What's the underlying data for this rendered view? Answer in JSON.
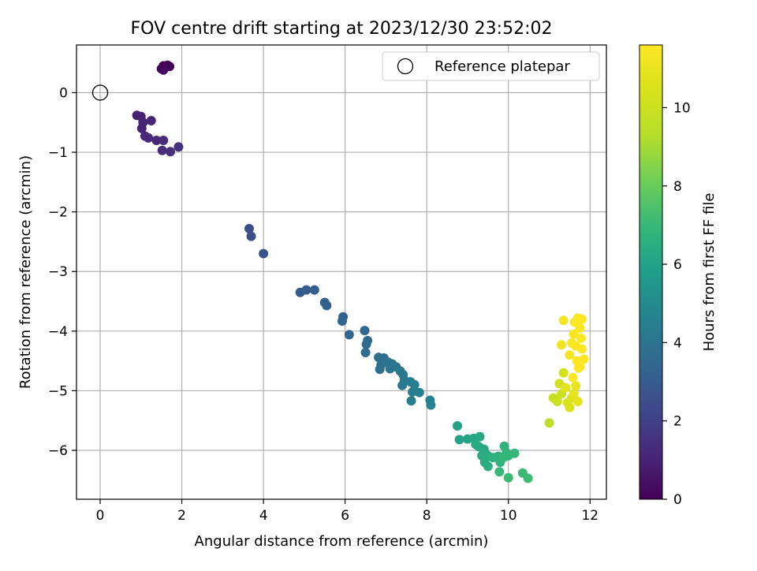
{
  "chart_data": {
    "type": "scatter",
    "title": "FOV centre drift starting at 2023/12/30 23:52:02",
    "xlabel": "Angular distance from reference (arcmin)",
    "ylabel": "Rotation from reference (arcmin)",
    "colorbar_label": "Hours from first FF file",
    "colormap": "viridis",
    "xlim": [
      -0.58,
      12.4
    ],
    "ylim": [
      -6.82,
      0.8
    ],
    "clim": [
      0,
      11.6
    ],
    "x_ticks": [
      0,
      2,
      4,
      6,
      8,
      10,
      12
    ],
    "y_ticks": [
      0,
      -1,
      -2,
      -3,
      -4,
      -5,
      -6
    ],
    "colorbar_ticks": [
      0,
      2,
      4,
      6,
      8,
      10
    ],
    "grid": true,
    "legend": {
      "position": "top-right",
      "entries": [
        "Reference platepar"
      ]
    },
    "reference_point": {
      "x": 0,
      "y": 0
    },
    "points": [
      {
        "x": 1.55,
        "y": 0.45,
        "h": 0.05
      },
      {
        "x": 1.65,
        "y": 0.46,
        "h": 0.08
      },
      {
        "x": 1.7,
        "y": 0.44,
        "h": 0.1
      },
      {
        "x": 1.5,
        "y": 0.4,
        "h": 0.12
      },
      {
        "x": 1.6,
        "y": 0.43,
        "h": 0.15
      },
      {
        "x": 1.55,
        "y": 0.38,
        "h": 0.18
      },
      {
        "x": 0.9,
        "y": -0.38,
        "h": 0.9
      },
      {
        "x": 1.0,
        "y": -0.4,
        "h": 0.95
      },
      {
        "x": 1.05,
        "y": -0.5,
        "h": 1.0
      },
      {
        "x": 1.02,
        "y": -0.6,
        "h": 1.05
      },
      {
        "x": 1.25,
        "y": -0.47,
        "h": 1.1
      },
      {
        "x": 1.1,
        "y": -0.73,
        "h": 1.15
      },
      {
        "x": 1.18,
        "y": -0.76,
        "h": 1.2
      },
      {
        "x": 1.38,
        "y": -0.8,
        "h": 1.25
      },
      {
        "x": 1.55,
        "y": -0.8,
        "h": 1.3
      },
      {
        "x": 1.52,
        "y": -0.97,
        "h": 1.35
      },
      {
        "x": 1.72,
        "y": -0.99,
        "h": 1.4
      },
      {
        "x": 1.92,
        "y": -0.91,
        "h": 1.45
      },
      {
        "x": 3.65,
        "y": -2.28,
        "h": 2.5
      },
      {
        "x": 3.7,
        "y": -2.41,
        "h": 2.55
      },
      {
        "x": 4.0,
        "y": -2.7,
        "h": 2.65
      },
      {
        "x": 4.9,
        "y": -3.35,
        "h": 3.0
      },
      {
        "x": 5.05,
        "y": -3.31,
        "h": 3.05
      },
      {
        "x": 5.25,
        "y": -3.31,
        "h": 3.1
      },
      {
        "x": 5.5,
        "y": -3.52,
        "h": 3.15
      },
      {
        "x": 5.55,
        "y": -3.57,
        "h": 3.2
      },
      {
        "x": 5.95,
        "y": -3.76,
        "h": 3.3
      },
      {
        "x": 5.93,
        "y": -3.83,
        "h": 3.35
      },
      {
        "x": 6.1,
        "y": -4.06,
        "h": 3.4
      },
      {
        "x": 6.48,
        "y": -3.99,
        "h": 3.5
      },
      {
        "x": 6.55,
        "y": -4.16,
        "h": 3.55
      },
      {
        "x": 6.52,
        "y": -4.22,
        "h": 3.6
      },
      {
        "x": 6.5,
        "y": -4.36,
        "h": 3.65
      },
      {
        "x": 6.82,
        "y": -4.44,
        "h": 3.75
      },
      {
        "x": 6.95,
        "y": -4.45,
        "h": 3.8
      },
      {
        "x": 6.88,
        "y": -4.57,
        "h": 3.85
      },
      {
        "x": 6.85,
        "y": -4.64,
        "h": 3.9
      },
      {
        "x": 7.05,
        "y": -4.52,
        "h": 3.95
      },
      {
        "x": 7.15,
        "y": -4.55,
        "h": 4.0
      },
      {
        "x": 7.1,
        "y": -4.63,
        "h": 4.05
      },
      {
        "x": 7.25,
        "y": -4.6,
        "h": 4.1
      },
      {
        "x": 7.35,
        "y": -4.67,
        "h": 4.15
      },
      {
        "x": 7.42,
        "y": -4.73,
        "h": 4.2
      },
      {
        "x": 7.45,
        "y": -4.82,
        "h": 4.25
      },
      {
        "x": 7.4,
        "y": -4.91,
        "h": 4.3
      },
      {
        "x": 7.6,
        "y": -4.85,
        "h": 4.35
      },
      {
        "x": 7.7,
        "y": -4.9,
        "h": 4.4
      },
      {
        "x": 7.65,
        "y": -5.02,
        "h": 4.45
      },
      {
        "x": 7.62,
        "y": -5.17,
        "h": 4.5
      },
      {
        "x": 7.82,
        "y": -5.03,
        "h": 4.55
      },
      {
        "x": 8.08,
        "y": -5.16,
        "h": 4.6
      },
      {
        "x": 8.1,
        "y": -5.24,
        "h": 4.65
      },
      {
        "x": 8.75,
        "y": -5.59,
        "h": 6.0
      },
      {
        "x": 8.8,
        "y": -5.82,
        "h": 6.05
      },
      {
        "x": 9.0,
        "y": -5.81,
        "h": 6.1
      },
      {
        "x": 9.15,
        "y": -5.8,
        "h": 6.15
      },
      {
        "x": 9.3,
        "y": -5.77,
        "h": 6.2
      },
      {
        "x": 9.2,
        "y": -5.9,
        "h": 6.25
      },
      {
        "x": 9.28,
        "y": -5.94,
        "h": 6.3
      },
      {
        "x": 9.4,
        "y": -5.98,
        "h": 6.35
      },
      {
        "x": 9.35,
        "y": -6.09,
        "h": 6.4
      },
      {
        "x": 9.48,
        "y": -6.08,
        "h": 6.45
      },
      {
        "x": 9.42,
        "y": -6.2,
        "h": 6.5
      },
      {
        "x": 9.5,
        "y": -6.27,
        "h": 6.55
      },
      {
        "x": 9.62,
        "y": -6.12,
        "h": 6.6
      },
      {
        "x": 9.75,
        "y": -6.1,
        "h": 6.65
      },
      {
        "x": 9.8,
        "y": -6.2,
        "h": 6.7
      },
      {
        "x": 9.9,
        "y": -5.93,
        "h": 6.75
      },
      {
        "x": 9.95,
        "y": -6.04,
        "h": 6.8
      },
      {
        "x": 10.0,
        "y": -6.09,
        "h": 6.85
      },
      {
        "x": 9.88,
        "y": -6.12,
        "h": 6.9
      },
      {
        "x": 10.15,
        "y": -6.05,
        "h": 6.95
      },
      {
        "x": 9.78,
        "y": -6.36,
        "h": 7.0
      },
      {
        "x": 10.0,
        "y": -6.46,
        "h": 7.05
      },
      {
        "x": 10.35,
        "y": -6.38,
        "h": 7.1
      },
      {
        "x": 10.48,
        "y": -6.47,
        "h": 7.15
      },
      {
        "x": 11.0,
        "y": -5.54,
        "h": 9.6
      },
      {
        "x": 11.1,
        "y": -5.12,
        "h": 9.8
      },
      {
        "x": 11.2,
        "y": -5.18,
        "h": 10.0
      },
      {
        "x": 11.3,
        "y": -5.05,
        "h": 10.1
      },
      {
        "x": 11.25,
        "y": -4.88,
        "h": 10.2
      },
      {
        "x": 11.35,
        "y": -4.7,
        "h": 10.3
      },
      {
        "x": 11.45,
        "y": -5.2,
        "h": 10.4
      },
      {
        "x": 11.5,
        "y": -5.28,
        "h": 10.5
      },
      {
        "x": 11.55,
        "y": -5.12,
        "h": 10.6
      },
      {
        "x": 11.4,
        "y": -4.95,
        "h": 10.7
      },
      {
        "x": 11.6,
        "y": -5.05,
        "h": 10.8
      },
      {
        "x": 11.7,
        "y": -5.18,
        "h": 10.9
      },
      {
        "x": 11.65,
        "y": -4.92,
        "h": 11.0
      },
      {
        "x": 11.3,
        "y": -4.23,
        "h": 11.2
      },
      {
        "x": 11.35,
        "y": -3.82,
        "h": 11.3
      },
      {
        "x": 11.5,
        "y": -4.4,
        "h": 11.35
      },
      {
        "x": 11.55,
        "y": -4.2,
        "h": 11.4
      },
      {
        "x": 11.6,
        "y": -4.05,
        "h": 11.45
      },
      {
        "x": 11.62,
        "y": -3.85,
        "h": 11.5
      },
      {
        "x": 11.7,
        "y": -3.78,
        "h": 11.5
      },
      {
        "x": 11.75,
        "y": -3.95,
        "h": 11.52
      },
      {
        "x": 11.78,
        "y": -4.12,
        "h": 11.55
      },
      {
        "x": 11.8,
        "y": -4.3,
        "h": 11.55
      },
      {
        "x": 11.68,
        "y": -4.5,
        "h": 11.58
      },
      {
        "x": 11.72,
        "y": -4.62,
        "h": 11.58
      },
      {
        "x": 11.85,
        "y": -4.47,
        "h": 11.6
      },
      {
        "x": 11.58,
        "y": -4.78,
        "h": 11.6
      },
      {
        "x": 11.8,
        "y": -3.8,
        "h": 11.6
      },
      {
        "x": 11.65,
        "y": -4.25,
        "h": 11.6
      },
      {
        "x": 11.75,
        "y": -4.6,
        "h": 11.6
      }
    ]
  }
}
